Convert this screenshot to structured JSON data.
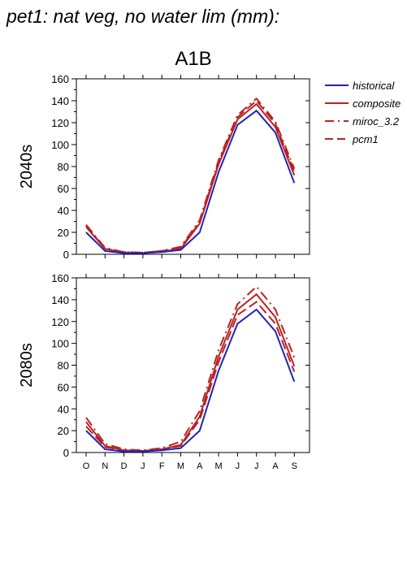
{
  "title": "pet1: nat veg, no water lim (mm):",
  "scenario": "A1B",
  "colors": {
    "historical": "#2222bb",
    "future": "#bb2222"
  },
  "legend": [
    {
      "name": "historical",
      "style": "solid",
      "color": "#2222bb"
    },
    {
      "name": "composite",
      "style": "solid",
      "color": "#bb2222"
    },
    {
      "name": "miroc_3.2",
      "style": "dashdot",
      "color": "#bb2222"
    },
    {
      "name": "pcm1",
      "style": "dashed",
      "color": "#bb2222"
    }
  ],
  "chart_data": [
    {
      "type": "line",
      "panel_label": "2040s",
      "categories": [
        "O",
        "N",
        "D",
        "J",
        "F",
        "M",
        "A",
        "M",
        "J",
        "J",
        "A",
        "S"
      ],
      "ylim": [
        0,
        160
      ],
      "yticks": [
        0,
        20,
        40,
        60,
        80,
        100,
        120,
        140,
        160
      ],
      "series": [
        {
          "name": "historical",
          "style": "solid",
          "values": [
            20,
            3,
            1,
            1,
            2,
            4,
            20,
            75,
            118,
            131,
            111,
            65
          ]
        },
        {
          "name": "composite",
          "style": "solid",
          "values": [
            25,
            5,
            1.5,
            1,
            2.5,
            5,
            28,
            82,
            123,
            137,
            116,
            72
          ]
        },
        {
          "name": "miroc_3.2",
          "style": "dashdot",
          "values": [
            27,
            6,
            2,
            1.5,
            3,
            7,
            31,
            86,
            127,
            142,
            121,
            78
          ]
        },
        {
          "name": "pcm1",
          "style": "dashed",
          "values": [
            26,
            5,
            2,
            1.5,
            3,
            6,
            29,
            84,
            125,
            140,
            119,
            75
          ]
        }
      ]
    },
    {
      "type": "line",
      "panel_label": "2080s",
      "categories": [
        "O",
        "N",
        "D",
        "J",
        "F",
        "M",
        "A",
        "M",
        "J",
        "J",
        "A",
        "S"
      ],
      "ylim": [
        0,
        160
      ],
      "yticks": [
        0,
        20,
        40,
        60,
        80,
        100,
        120,
        140,
        160
      ],
      "series": [
        {
          "name": "historical",
          "style": "solid",
          "values": [
            20,
            3,
            1,
            1,
            2,
            4,
            20,
            75,
            118,
            131,
            111,
            65
          ]
        },
        {
          "name": "composite",
          "style": "solid",
          "values": [
            28,
            6,
            2,
            1.5,
            3,
            7,
            33,
            88,
            131,
            145,
            124,
            79
          ]
        },
        {
          "name": "miroc_3.2",
          "style": "dashdot",
          "values": [
            32,
            8,
            3,
            2,
            4,
            10,
            38,
            94,
            136,
            152,
            131,
            87
          ]
        },
        {
          "name": "pcm1",
          "style": "dashed",
          "values": [
            24,
            5,
            2,
            1.5,
            3,
            6,
            30,
            83,
            126,
            138,
            118,
            74
          ]
        }
      ]
    }
  ]
}
